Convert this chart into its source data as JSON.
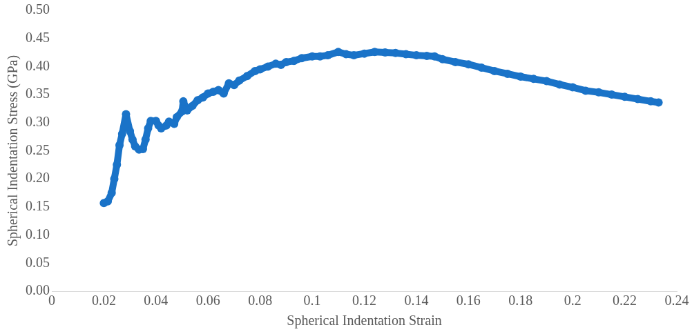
{
  "chart_data": {
    "type": "line",
    "xlabel": "Spherical Indentation Strain",
    "ylabel": "Spherical Indentation Stress (GPa)",
    "xlim": [
      0,
      0.24
    ],
    "xticks": [
      0,
      0.02,
      0.04,
      0.06,
      0.08,
      0.1,
      0.12,
      0.14,
      0.16,
      0.18,
      0.2,
      0.22,
      0.24
    ],
    "ylim": [
      0,
      0.5
    ],
    "yticks": [
      {
        "value": 0,
        "label": "0.00"
      },
      {
        "value": 0.05,
        "label": "0.05"
      },
      {
        "value": 0.1,
        "label": "0.10"
      },
      {
        "value": 0.15,
        "label": "0.15"
      },
      {
        "value": 0.2,
        "label": "0.20"
      },
      {
        "value": 0.25,
        "label": "0.25"
      },
      {
        "value": 0.3,
        "label": "0.30"
      },
      {
        "value": 0.35,
        "label": "0.35"
      },
      {
        "value": 0.4,
        "label": "0.40"
      },
      {
        "value": 0.45,
        "label": "0.45"
      },
      {
        "value": 0.5,
        "label": "0.50"
      }
    ],
    "grid": false,
    "legend": false,
    "marker": "circle",
    "series": [
      {
        "color": "#1a73c8",
        "x": [
          0.02,
          0.0215,
          0.023,
          0.024,
          0.025,
          0.026,
          0.027,
          0.0285,
          0.03,
          0.031,
          0.032,
          0.0335,
          0.035,
          0.036,
          0.037,
          0.038,
          0.04,
          0.041,
          0.042,
          0.044,
          0.045,
          0.047,
          0.048,
          0.05,
          0.0505,
          0.052,
          0.054,
          0.056,
          0.058,
          0.06,
          0.062,
          0.064,
          0.066,
          0.068,
          0.07,
          0.072,
          0.075,
          0.078,
          0.08,
          0.083,
          0.086,
          0.088,
          0.09,
          0.093,
          0.096,
          0.1,
          0.103,
          0.106,
          0.11,
          0.113,
          0.116,
          0.12,
          0.124,
          0.128,
          0.132,
          0.136,
          0.14,
          0.144,
          0.147,
          0.15,
          0.155,
          0.16,
          0.165,
          0.17,
          0.175,
          0.18,
          0.185,
          0.19,
          0.195,
          0.2,
          0.205,
          0.21,
          0.215,
          0.22,
          0.225,
          0.23,
          0.233
        ],
        "values": [
          0.157,
          0.16,
          0.175,
          0.2,
          0.225,
          0.26,
          0.28,
          0.315,
          0.285,
          0.27,
          0.258,
          0.252,
          0.253,
          0.27,
          0.29,
          0.303,
          0.303,
          0.295,
          0.29,
          0.295,
          0.302,
          0.298,
          0.31,
          0.32,
          0.338,
          0.322,
          0.33,
          0.34,
          0.345,
          0.352,
          0.355,
          0.358,
          0.352,
          0.37,
          0.367,
          0.375,
          0.383,
          0.392,
          0.395,
          0.4,
          0.405,
          0.403,
          0.408,
          0.41,
          0.415,
          0.418,
          0.418,
          0.42,
          0.426,
          0.422,
          0.42,
          0.423,
          0.426,
          0.425,
          0.424,
          0.422,
          0.42,
          0.419,
          0.418,
          0.413,
          0.408,
          0.404,
          0.398,
          0.392,
          0.387,
          0.382,
          0.378,
          0.374,
          0.368,
          0.363,
          0.357,
          0.354,
          0.35,
          0.346,
          0.342,
          0.338,
          0.336
        ]
      }
    ]
  }
}
